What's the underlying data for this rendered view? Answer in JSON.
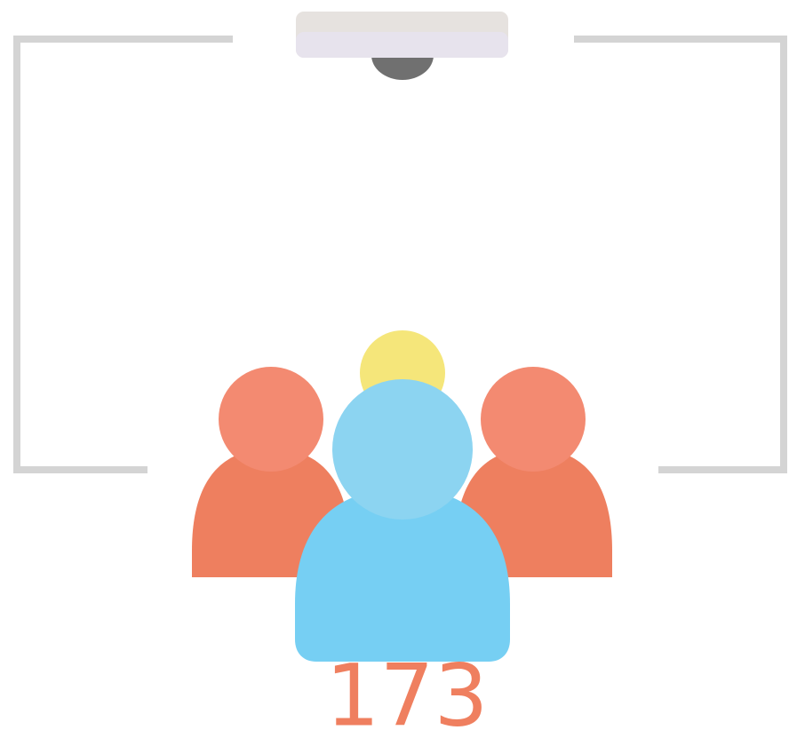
{
  "count": "173"
}
